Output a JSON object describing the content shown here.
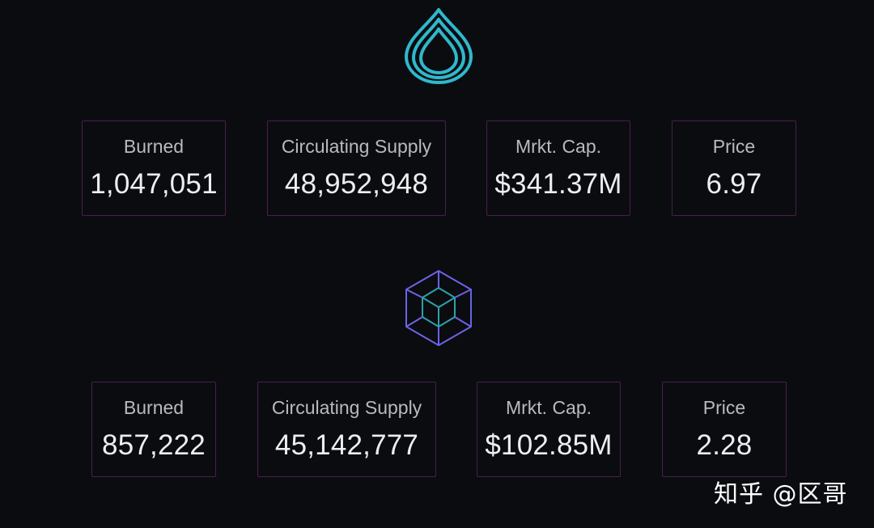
{
  "icons": {
    "top_logo": "water-drop-logo-icon",
    "bottom_logo": "cube-logo-icon"
  },
  "colors": {
    "background": "#0b0c10",
    "card_border": "#4a1f4e",
    "drop_logo": "#2fb8cc",
    "cube_logo_outer": "#6b63e6",
    "cube_logo_inner": "#2aa3a8"
  },
  "token_1": {
    "burned_label": "Burned",
    "burned_value": "1,047,051",
    "supply_label": "Circulating Supply",
    "supply_value": "48,952,948",
    "cap_label": "Mrkt. Cap.",
    "cap_value": "$341.37M",
    "price_label": "Price",
    "price_value": "6.97"
  },
  "token_2": {
    "burned_label": "Burned",
    "burned_value": "857,222",
    "supply_label": "Circulating Supply",
    "supply_value": "45,142,777",
    "cap_label": "Mrkt. Cap.",
    "cap_value": "$102.85M",
    "price_label": "Price",
    "price_value": "2.28"
  },
  "watermark": "知乎 @区哥"
}
